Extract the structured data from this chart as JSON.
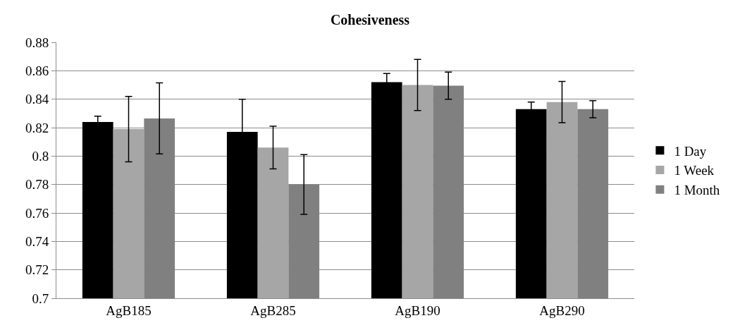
{
  "chart_data": {
    "type": "bar",
    "title": "Cohesiveness",
    "categories": [
      "AgB185",
      "AgB285",
      "AgB190",
      "AgB290"
    ],
    "series": [
      {
        "name": "1 Day",
        "color": "#000000",
        "values": [
          0.824,
          0.817,
          0.852,
          0.833
        ],
        "errors": [
          0.004,
          0.023,
          0.006,
          0.005
        ]
      },
      {
        "name": "1 Week",
        "color": "#a6a6a6",
        "values": [
          0.819,
          0.806,
          0.85,
          0.838
        ],
        "errors": [
          0.023,
          0.015,
          0.018,
          0.0145
        ]
      },
      {
        "name": "1 Month",
        "color": "#808080",
        "values": [
          0.8265,
          0.78,
          0.8495,
          0.833
        ],
        "errors": [
          0.025,
          0.021,
          0.0095,
          0.006
        ]
      }
    ],
    "ylim": [
      0.7,
      0.88
    ],
    "yticks": [
      0.7,
      0.72,
      0.74,
      0.76,
      0.78,
      0.8,
      0.82,
      0.84,
      0.86,
      0.88
    ],
    "grid": "y",
    "legend": "right"
  }
}
